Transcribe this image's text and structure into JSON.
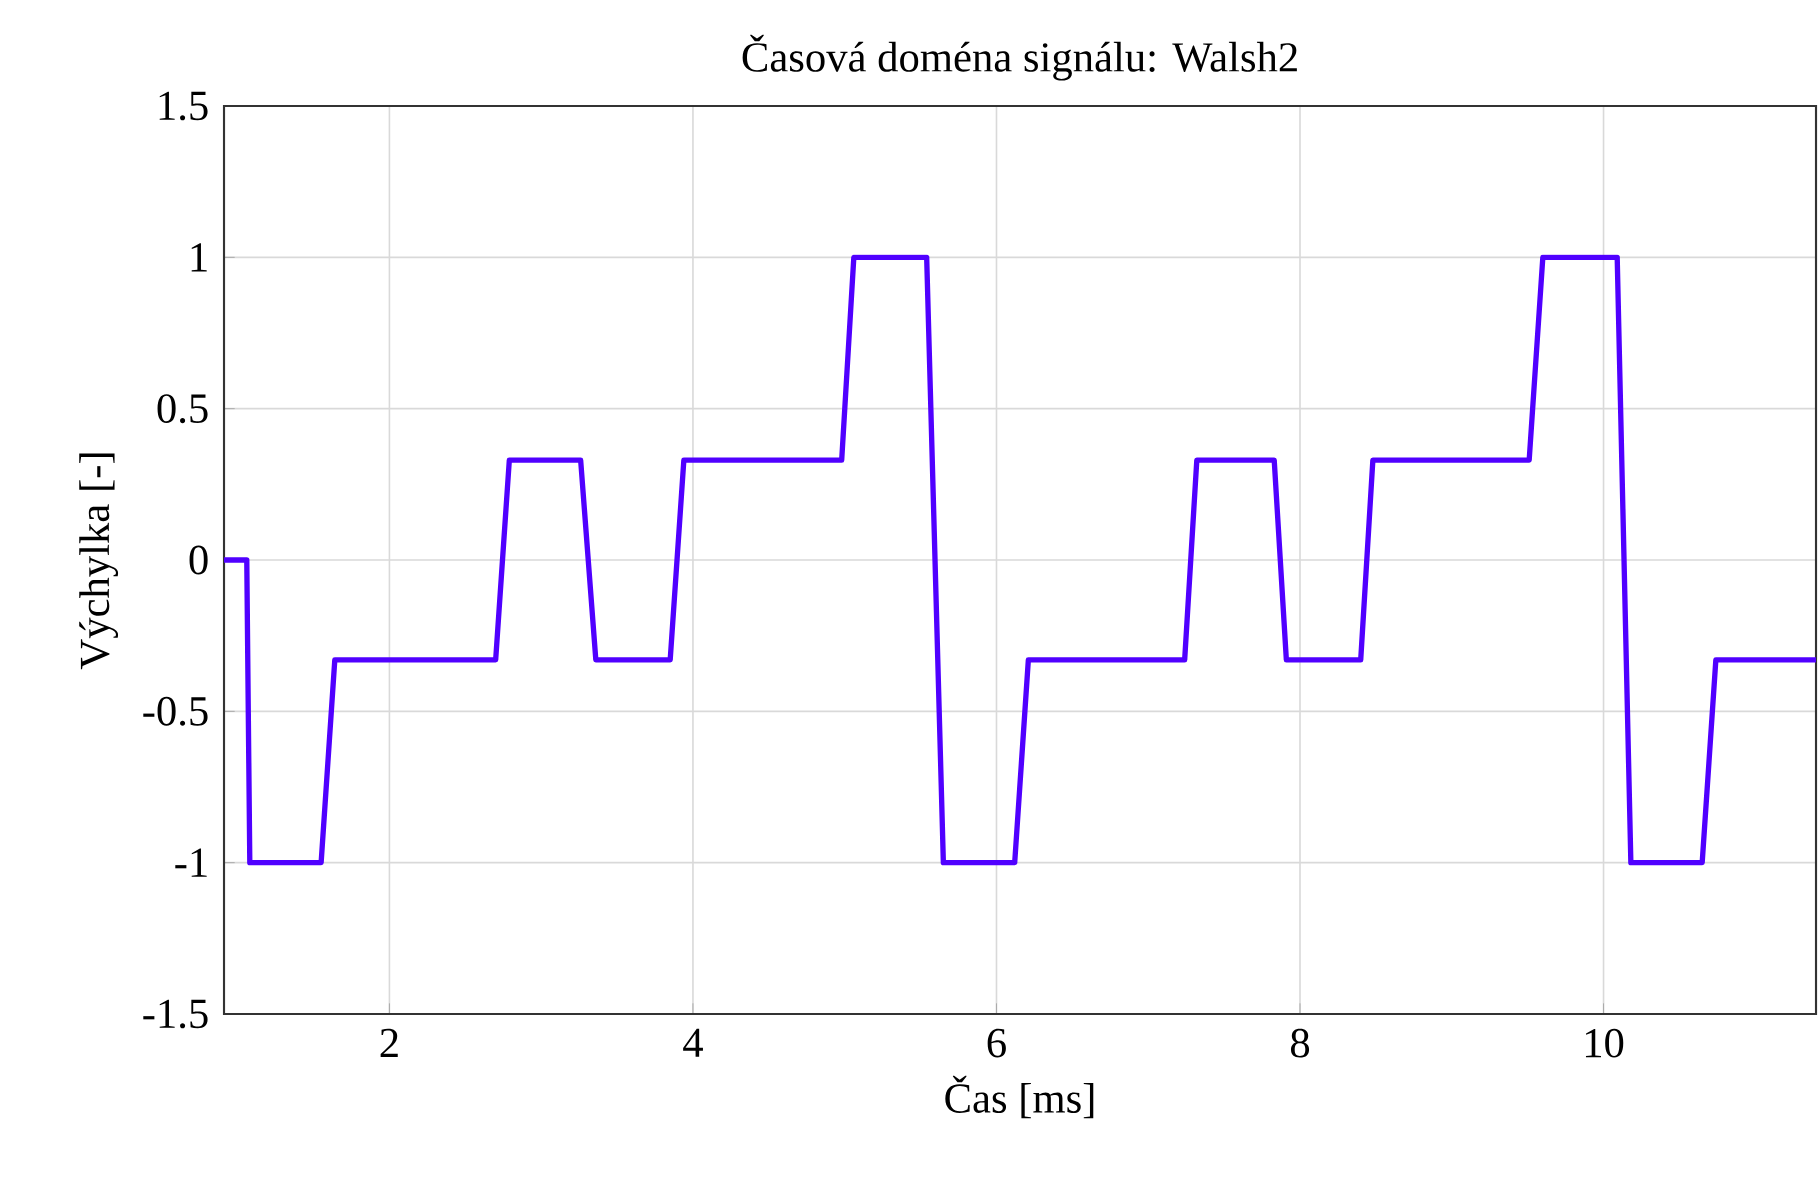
{
  "chart_data": {
    "type": "line",
    "title": "Časová doména signálu: Walsh2",
    "xlabel": "Čas [ms]",
    "ylabel": "Výchylka [-]",
    "x": [
      0.91,
      1.06,
      1.08,
      1.55,
      1.64,
      2.7,
      2.79,
      3.26,
      3.36,
      3.85,
      3.94,
      4.98,
      5.06,
      5.54,
      5.65,
      6.12,
      6.21,
      7.24,
      7.32,
      7.83,
      7.91,
      8.4,
      8.48,
      9.51,
      9.6,
      10.09,
      10.18,
      10.65,
      10.74,
      11.4
    ],
    "values": [
      0,
      0,
      -1,
      -1,
      -0.33,
      -0.33,
      0.33,
      0.33,
      -0.33,
      -0.33,
      0.33,
      0.33,
      1,
      1,
      -1,
      -1,
      -0.33,
      -0.33,
      0.33,
      0.33,
      -0.33,
      -0.33,
      0.33,
      0.33,
      1,
      1,
      -1,
      -1,
      -0.33,
      -0.33
    ],
    "color": "#5000ff",
    "xlim": [
      0.91,
      11.4
    ],
    "ylim": [
      -1.5,
      1.5
    ],
    "xticks": [
      2,
      4,
      6,
      8,
      10
    ],
    "yticks": [
      -1.5,
      -1,
      -0.5,
      0,
      0.5,
      1,
      1.5
    ],
    "grid": true
  }
}
